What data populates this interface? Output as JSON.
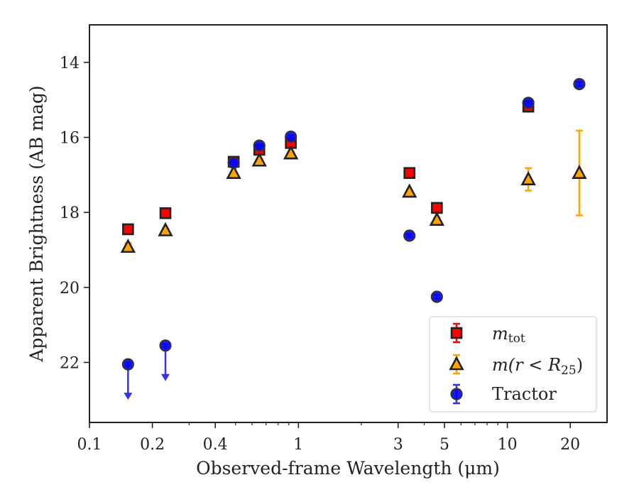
{
  "chart_data": {
    "type": "scatter",
    "xlabel": "Observed-frame Wavelength (μm)",
    "ylabel": "Apparent Brightness (AB mag)",
    "x_scale": "log",
    "xlim": [
      0.1,
      30
    ],
    "ylim": [
      23.6,
      13.0
    ],
    "y_inverted": true,
    "x_ticks": [
      0.1,
      0.2,
      0.4,
      1,
      3,
      5,
      10,
      20
    ],
    "x_tick_labels": [
      "0.1",
      "0.2",
      "0.4",
      "1",
      "3",
      "5",
      "10",
      "20"
    ],
    "y_ticks": [
      14,
      16,
      18,
      20,
      22
    ],
    "y_tick_labels": [
      "14",
      "16",
      "18",
      "20",
      "22"
    ],
    "grid": false,
    "legend_position": "lower-right",
    "series": [
      {
        "name": "m_tot",
        "marker": "square",
        "color": "#ff0000",
        "edge_color": "#222222",
        "err_color": "#ff0000",
        "points": [
          {
            "x": 0.153,
            "y": 18.45,
            "err": 0.07
          },
          {
            "x": 0.231,
            "y": 18.02,
            "err": 0.05
          },
          {
            "x": 0.49,
            "y": 16.65,
            "err": 0.04
          },
          {
            "x": 0.65,
            "y": 16.33,
            "err": 0.05
          },
          {
            "x": 0.92,
            "y": 16.15,
            "err": 0.05
          },
          {
            "x": 3.4,
            "y": 16.95,
            "err": 0.05
          },
          {
            "x": 4.6,
            "y": 17.88,
            "err": 0.06
          },
          {
            "x": 12.6,
            "y": 15.18,
            "err": 0.12
          }
        ]
      },
      {
        "name": "m(r<R25)",
        "marker": "triangle",
        "color": "#ffa500",
        "edge_color": "#222222",
        "err_color": "#ffa500",
        "points": [
          {
            "x": 0.153,
            "y": 18.92,
            "err": 0.1
          },
          {
            "x": 0.231,
            "y": 18.48,
            "err": 0.05
          },
          {
            "x": 0.49,
            "y": 16.95,
            "err": 0.04
          },
          {
            "x": 0.65,
            "y": 16.62,
            "err": 0.05
          },
          {
            "x": 0.92,
            "y": 16.43,
            "err": 0.05
          },
          {
            "x": 3.4,
            "y": 17.45,
            "err": 0.05
          },
          {
            "x": 4.6,
            "y": 18.2,
            "err": 0.06
          },
          {
            "x": 12.6,
            "y": 17.12,
            "err": 0.3
          },
          {
            "x": 22.1,
            "y": 16.95,
            "err": 1.13
          }
        ]
      },
      {
        "name": "Tractor",
        "marker": "circle",
        "color": "#0000ff",
        "edge_color": "#333333",
        "err_color": "#3333ee",
        "points": [
          {
            "x": 0.153,
            "y": 22.05,
            "err": 0.04,
            "upper_limit": true
          },
          {
            "x": 0.231,
            "y": 21.55,
            "err": 0.04,
            "upper_limit": true
          },
          {
            "x": 0.49,
            "y": 16.68,
            "err": 0.04
          },
          {
            "x": 0.65,
            "y": 16.22,
            "err": 0.04
          },
          {
            "x": 0.92,
            "y": 15.98,
            "err": 0.04
          },
          {
            "x": 3.4,
            "y": 18.62,
            "err": 0.04
          },
          {
            "x": 4.6,
            "y": 20.25,
            "err": 0.05
          },
          {
            "x": 12.6,
            "y": 15.08,
            "err": 0.05
          },
          {
            "x": 22.1,
            "y": 14.58,
            "err": 0.05
          }
        ]
      }
    ],
    "legend": [
      {
        "series": "m_tot",
        "base": "m",
        "sub": "tot"
      },
      {
        "series": "m(r<R25)",
        "base": "m",
        "text": "(r < R",
        "sub": "25",
        "tail": ")"
      },
      {
        "series": "Tractor",
        "label": "Tractor"
      }
    ]
  }
}
